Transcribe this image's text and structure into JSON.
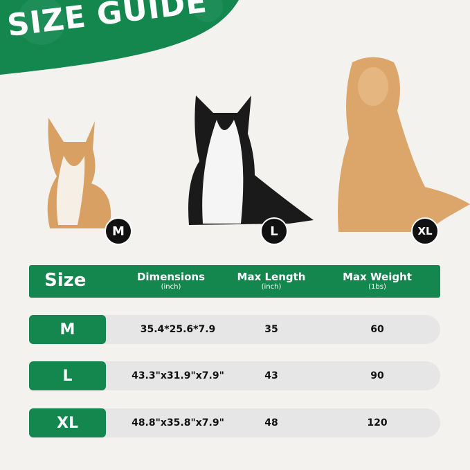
{
  "title": "SIZE GUIDE",
  "colors": {
    "accent": "#14874f",
    "background": "#f4f2ee",
    "row": "#e6e6e6"
  },
  "dogs": [
    {
      "breed_icon": "corgi-dog",
      "size": "M"
    },
    {
      "breed_icon": "border-collie-dog",
      "size": "L"
    },
    {
      "breed_icon": "golden-retriever-dog",
      "size": "XL"
    }
  ],
  "table": {
    "headers": [
      {
        "label": "Size",
        "unit": ""
      },
      {
        "label": "Dimensions",
        "unit": "(inch)"
      },
      {
        "label": "Max Length",
        "unit": "(inch)"
      },
      {
        "label": "Max Weight",
        "unit": "(1bs)"
      }
    ],
    "rows": [
      {
        "size": "M",
        "dimensions": "35.4*25.6*7.9",
        "max_length": "35",
        "max_weight": "60"
      },
      {
        "size": "L",
        "dimensions": "43.3\"x31.9\"x7.9\"",
        "max_length": "43",
        "max_weight": "90"
      },
      {
        "size": "XL",
        "dimensions": "48.8\"x35.8\"x7.9\"",
        "max_length": "48",
        "max_weight": "120"
      }
    ]
  }
}
